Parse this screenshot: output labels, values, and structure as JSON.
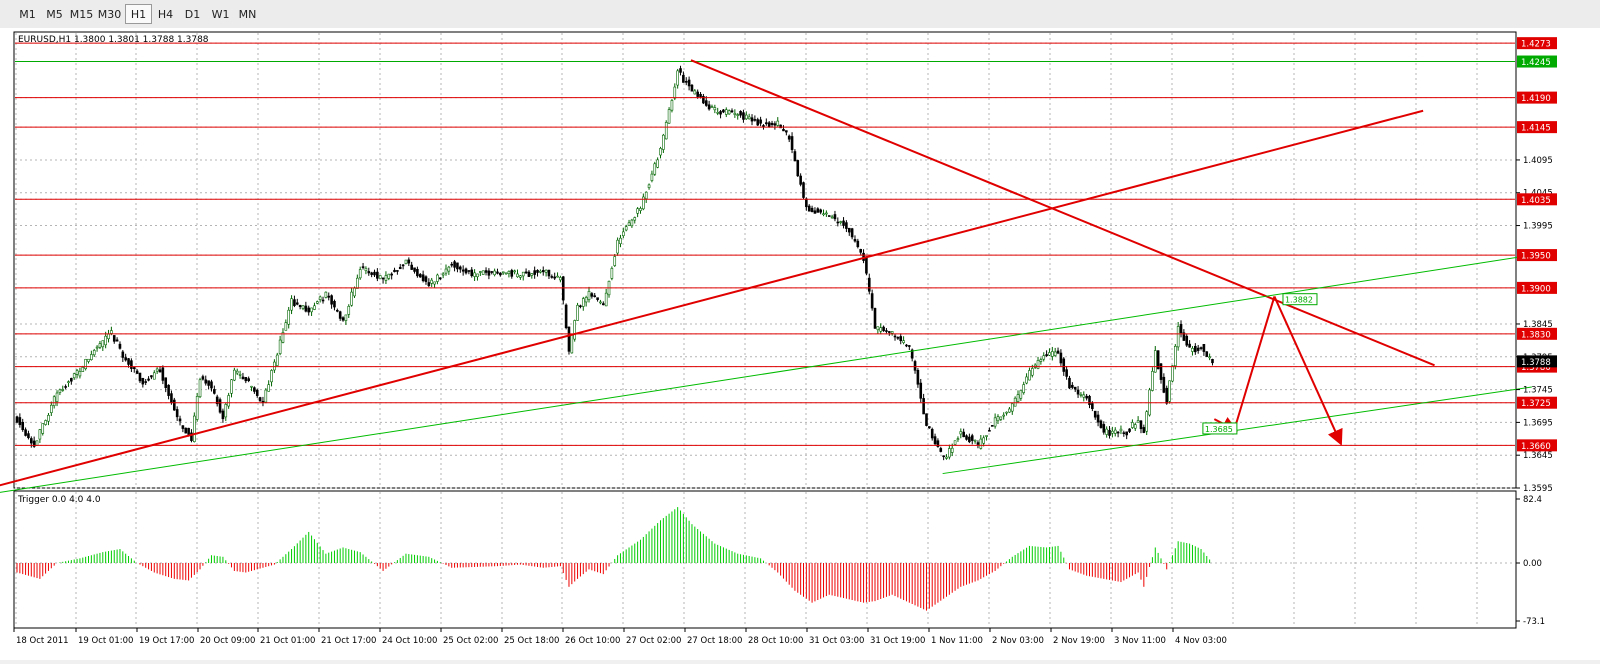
{
  "toolbar": {
    "timeframes": [
      "M1",
      "M5",
      "M15",
      "M30",
      "H1",
      "H4",
      "D1",
      "W1",
      "MN"
    ],
    "active": "H1"
  },
  "chart_data": [
    {
      "type": "candlestick",
      "title": "EURUSD,H1  1.3800 1.3801 1.3788 1.3788",
      "ylim": [
        1.3595,
        1.429
      ],
      "y_ticks": [
        1.4273,
        1.4245,
        1.419,
        1.4145,
        1.4095,
        1.4045,
        1.4035,
        1.3995,
        1.395,
        1.39,
        1.3845,
        1.383,
        1.3795,
        1.378,
        1.3745,
        1.3725,
        1.3695,
        1.366,
        1.3645,
        1.3595
      ],
      "x_ticks": [
        "18 Oct 2011",
        "19 Oct 01:00",
        "19 Oct 17:00",
        "20 Oct 09:00",
        "21 Oct 01:00",
        "21 Oct 17:00",
        "24 Oct 10:00",
        "25 Oct 02:00",
        "25 Oct 18:00",
        "26 Oct 10:00",
        "27 Oct 02:00",
        "27 Oct 18:00",
        "28 Oct 10:00",
        "31 Oct 03:00",
        "31 Oct 19:00",
        "1 Nov 11:00",
        "2 Nov 03:00",
        "2 Nov 19:00",
        "3 Nov 11:00",
        "4 Nov 03:00"
      ],
      "current_price": 1.3788,
      "anchors": [
        [
          0,
          1.37
        ],
        [
          6,
          1.366
        ],
        [
          14,
          1.374
        ],
        [
          22,
          1.3775
        ],
        [
          28,
          1.381
        ],
        [
          33,
          1.383
        ],
        [
          38,
          1.379
        ],
        [
          44,
          1.3755
        ],
        [
          50,
          1.3775
        ],
        [
          56,
          1.37
        ],
        [
          61,
          1.367
        ],
        [
          64,
          1.376
        ],
        [
          68,
          1.375
        ],
        [
          72,
          1.37
        ],
        [
          76,
          1.3775
        ],
        [
          80,
          1.376
        ],
        [
          86,
          1.3725
        ],
        [
          90,
          1.3785
        ],
        [
          96,
          1.388
        ],
        [
          102,
          1.3865
        ],
        [
          108,
          1.389
        ],
        [
          114,
          1.385
        ],
        [
          120,
          1.393
        ],
        [
          128,
          1.3915
        ],
        [
          136,
          1.394
        ],
        [
          144,
          1.3905
        ],
        [
          152,
          1.3935
        ],
        [
          160,
          1.392
        ],
        [
          168,
          1.3925
        ],
        [
          176,
          1.392
        ],
        [
          184,
          1.3925
        ],
        [
          190,
          1.3915
        ],
        [
          193,
          1.38
        ],
        [
          196,
          1.387
        ],
        [
          200,
          1.389
        ],
        [
          205,
          1.3875
        ],
        [
          210,
          1.397
        ],
        [
          218,
          1.4025
        ],
        [
          225,
          1.411
        ],
        [
          231,
          1.423
        ],
        [
          236,
          1.42
        ],
        [
          244,
          1.417
        ],
        [
          252,
          1.4165
        ],
        [
          260,
          1.415
        ],
        [
          266,
          1.415
        ],
        [
          270,
          1.413
        ],
        [
          276,
          1.402
        ],
        [
          284,
          1.401
        ],
        [
          290,
          1.3995
        ],
        [
          296,
          1.3945
        ],
        [
          300,
          1.384
        ],
        [
          306,
          1.383
        ],
        [
          312,
          1.381
        ],
        [
          318,
          1.369
        ],
        [
          324,
          1.364
        ],
        [
          330,
          1.368
        ],
        [
          336,
          1.366
        ],
        [
          342,
          1.37
        ],
        [
          348,
          1.372
        ],
        [
          354,
          1.377
        ],
        [
          360,
          1.38
        ],
        [
          364,
          1.38
        ],
        [
          368,
          1.375
        ],
        [
          374,
          1.373
        ],
        [
          380,
          1.368
        ],
        [
          388,
          1.368
        ],
        [
          392,
          1.37
        ],
        [
          394,
          1.368
        ],
        [
          398,
          1.38
        ],
        [
          402,
          1.3725
        ],
        [
          406,
          1.384
        ],
        [
          410,
          1.3805
        ],
        [
          414,
          1.381
        ],
        [
          418,
          1.3788
        ]
      ],
      "horizontal_levels": [
        {
          "price": 1.4273,
          "label": "1.4273",
          "color": "#e00000"
        },
        {
          "price": 1.4245,
          "label": "1.4245",
          "color": "#00aa00"
        },
        {
          "price": 1.419,
          "label": "1.4190",
          "color": "#e00000"
        },
        {
          "price": 1.4145,
          "label": "1.4145",
          "color": "#e00000"
        },
        {
          "price": 1.4035,
          "label": "1.4035",
          "color": "#e00000"
        },
        {
          "price": 1.395,
          "label": "1.3950",
          "color": "#e00000"
        },
        {
          "price": 1.39,
          "label": "1.3900",
          "color": "#e00000"
        },
        {
          "price": 1.383,
          "label": "1.3830",
          "color": "#e00000"
        },
        {
          "price": 1.378,
          "label": "1.3780",
          "color": "#e00000"
        },
        {
          "price": 1.3725,
          "label": "1.3725",
          "color": "#e00000"
        },
        {
          "price": 1.366,
          "label": "1.3660",
          "color": "#e00000"
        }
      ],
      "trendlines": [
        {
          "color": "#e00000",
          "width": 2,
          "from": [
            -18,
            1.3585
          ],
          "to": [
            492,
            1.417
          ]
        },
        {
          "color": "#e00000",
          "width": 2,
          "from": [
            236,
            1.4247
          ],
          "to": [
            496,
            1.3782
          ]
        },
        {
          "color": "#00bb00",
          "width": 1,
          "from": [
            -18,
            1.358
          ],
          "to": [
            530,
            1.395
          ]
        },
        {
          "color": "#00bb00",
          "width": 1,
          "from": [
            324,
            1.3617
          ],
          "to": [
            530,
            1.3749
          ]
        }
      ],
      "projection_path": [
        [
          419,
          1.37
        ],
        [
          426,
          1.3684
        ],
        [
          440,
          1.3887
        ],
        [
          463,
          1.3665
        ]
      ],
      "projection_labels": [
        {
          "x": 443,
          "price": 1.3882,
          "label": "1.3882",
          "color": "#00aa00"
        },
        {
          "x": 415,
          "price": 1.3685,
          "label": "1.3685",
          "color": "#00aa00"
        }
      ],
      "colors": {
        "bull": "#006400",
        "bear": "#000000",
        "grid": "#b4b4b4",
        "axis": "#000000"
      }
    },
    {
      "type": "bar",
      "title": "Trigger 0.0 4.0 4.0",
      "ylim": [
        -73.1,
        82.4
      ],
      "y_ticks": [
        82.4,
        0.0,
        -73.1
      ],
      "y_tick_labels": [
        "82.4",
        "0.00",
        "-73.1"
      ],
      "anchors": [
        [
          0,
          -12
        ],
        [
          8,
          -20
        ],
        [
          14,
          0
        ],
        [
          22,
          6
        ],
        [
          30,
          14
        ],
        [
          36,
          18
        ],
        [
          42,
          0
        ],
        [
          48,
          -12
        ],
        [
          55,
          -20
        ],
        [
          60,
          -22
        ],
        [
          64,
          -8
        ],
        [
          68,
          10
        ],
        [
          72,
          8
        ],
        [
          76,
          -10
        ],
        [
          80,
          -12
        ],
        [
          86,
          -6
        ],
        [
          90,
          -2
        ],
        [
          96,
          18
        ],
        [
          102,
          40
        ],
        [
          108,
          12
        ],
        [
          114,
          20
        ],
        [
          120,
          14
        ],
        [
          128,
          -10
        ],
        [
          136,
          12
        ],
        [
          144,
          8
        ],
        [
          152,
          -6
        ],
        [
          160,
          -5
        ],
        [
          168,
          -4
        ],
        [
          176,
          -2
        ],
        [
          184,
          -6
        ],
        [
          190,
          -4
        ],
        [
          193,
          -30
        ],
        [
          196,
          -20
        ],
        [
          200,
          -8
        ],
        [
          205,
          -14
        ],
        [
          210,
          10
        ],
        [
          218,
          30
        ],
        [
          225,
          55
        ],
        [
          231,
          72
        ],
        [
          236,
          50
        ],
        [
          244,
          25
        ],
        [
          252,
          12
        ],
        [
          260,
          6
        ],
        [
          266,
          -12
        ],
        [
          272,
          -35
        ],
        [
          278,
          -50
        ],
        [
          284,
          -40
        ],
        [
          290,
          -45
        ],
        [
          296,
          -50
        ],
        [
          300,
          -48
        ],
        [
          306,
          -40
        ],
        [
          312,
          -50
        ],
        [
          318,
          -60
        ],
        [
          324,
          -45
        ],
        [
          330,
          -30
        ],
        [
          336,
          -22
        ],
        [
          342,
          -10
        ],
        [
          348,
          8
        ],
        [
          354,
          22
        ],
        [
          360,
          20
        ],
        [
          364,
          22
        ],
        [
          368,
          -8
        ],
        [
          374,
          -16
        ],
        [
          380,
          -20
        ],
        [
          386,
          -24
        ],
        [
          392,
          -12
        ],
        [
          394,
          -30
        ],
        [
          398,
          20
        ],
        [
          402,
          -8
        ],
        [
          406,
          28
        ],
        [
          410,
          25
        ],
        [
          414,
          18
        ],
        [
          418,
          0
        ]
      ]
    }
  ]
}
